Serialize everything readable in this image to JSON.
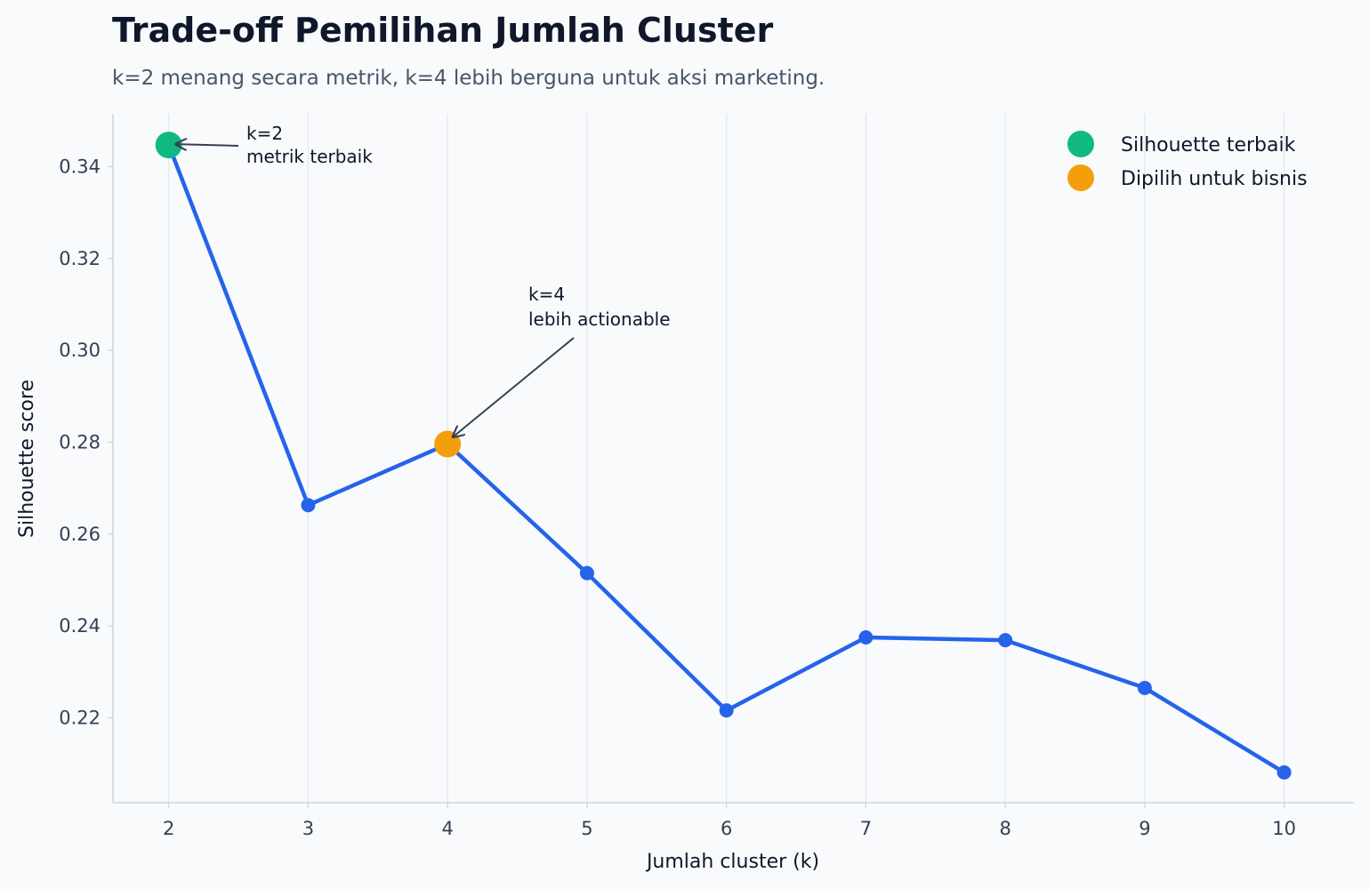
{
  "title": "Trade-off Pemilihan Jumlah Cluster",
  "subtitle": "k=2 menang secara metrik, k=4 lebih berguna untuk aksi marketing.",
  "colors": {
    "line": "#2563eb",
    "best": "#10b981",
    "chosen": "#f59e0b",
    "grid": "#e2e8f0",
    "axis": "#cbd5e1",
    "annotation_arrow": "#334155"
  },
  "chart_data": {
    "type": "line",
    "title": "Trade-off Pemilihan Jumlah Cluster",
    "subtitle": "k=2 menang secara metrik, k=4 lebih berguna untuk aksi marketing.",
    "xlabel": "Jumlah cluster (k)",
    "ylabel": "Silhouette score",
    "x": [
      2,
      3,
      4,
      5,
      6,
      7,
      8,
      9,
      10
    ],
    "series": [
      {
        "values": [
          0.3447,
          0.2663,
          0.2796,
          0.2515,
          0.2216,
          0.2375,
          0.2369,
          0.2265,
          0.2081
        ]
      }
    ],
    "xlim": [
      1.6,
      10.5
    ],
    "ylim": [
      0.2015,
      0.3515
    ],
    "yticks": [
      "0.22",
      "0.24",
      "0.26",
      "0.28",
      "0.30",
      "0.32",
      "0.34"
    ],
    "xticks": [
      "2",
      "3",
      "4",
      "5",
      "6",
      "7",
      "8",
      "9",
      "10"
    ],
    "grid": "vertical",
    "highlights": [
      {
        "x": 2,
        "y": 0.3447,
        "label": "Silhouette terbaik",
        "role": "best"
      },
      {
        "x": 4,
        "y": 0.2796,
        "label": "Dipilih untuk bisnis",
        "role": "chosen"
      }
    ],
    "annotations": [
      {
        "x": 2,
        "y": 0.3447,
        "lines": [
          "k=2",
          "metrik terbaik"
        ]
      },
      {
        "x": 4,
        "y": 0.2796,
        "lines": [
          "k=4",
          "lebih actionable"
        ]
      }
    ],
    "legend": {
      "position": "top-right",
      "entries": [
        "Silhouette terbaik",
        "Dipilih untuk bisnis"
      ]
    }
  }
}
